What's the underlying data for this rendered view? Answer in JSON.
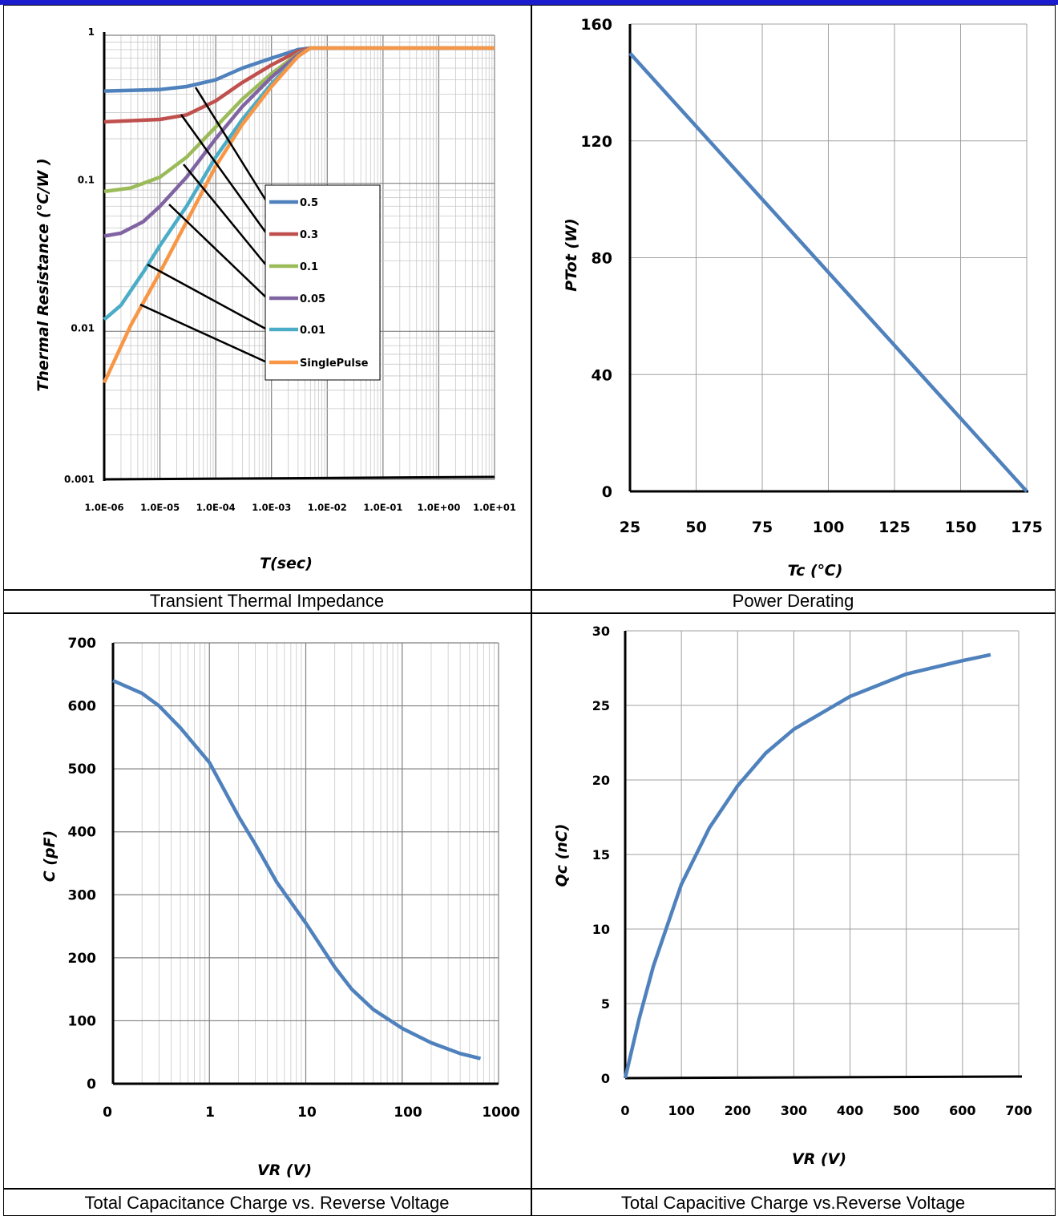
{
  "captions": {
    "tl": "Transient Thermal Impedance",
    "tr": "Power Derating",
    "bl": "Total Capacitance Charge vs. Reverse Voltage",
    "br": "Total Capacitive Charge vs.Reverse Voltage"
  },
  "chart_data": [
    {
      "type": "line",
      "x_scale": "log",
      "y_scale": "log",
      "xlabel": "T(sec)",
      "ylabel": "Thermal Resistance  (℃/W )",
      "xlim": [
        1e-06,
        10
      ],
      "ylim": [
        0.001,
        1
      ],
      "x_tick_labels": [
        "1.0E-06",
        "1.0E-05",
        "1.0E-04",
        "1.0E-03",
        "1.0E-02",
        "1.0E-01",
        "1.0E+00",
        "1.0E+01"
      ],
      "y_tick_labels": [
        "1",
        "0.1",
        "0.01",
        "0.001"
      ],
      "grid": true,
      "legend": "right",
      "series": [
        {
          "name": "0.5",
          "color": "#4f81bd",
          "x": [
            1e-06,
            1e-05,
            3e-05,
            0.0001,
            0.0003,
            0.001,
            0.003,
            0.005,
            10
          ],
          "y": [
            0.42,
            0.43,
            0.45,
            0.5,
            0.6,
            0.7,
            0.8,
            0.82,
            0.82
          ]
        },
        {
          "name": "0.3",
          "color": "#c0504d",
          "x": [
            1e-06,
            1e-05,
            3e-05,
            0.0001,
            0.0003,
            0.001,
            0.003,
            0.005,
            10
          ],
          "y": [
            0.26,
            0.27,
            0.29,
            0.36,
            0.48,
            0.63,
            0.78,
            0.82,
            0.82
          ]
        },
        {
          "name": "0.1",
          "color": "#9bbb59",
          "x": [
            1e-06,
            3e-06,
            1e-05,
            3e-05,
            0.0001,
            0.0003,
            0.001,
            0.003,
            0.005,
            10
          ],
          "y": [
            0.088,
            0.093,
            0.11,
            0.15,
            0.24,
            0.37,
            0.55,
            0.75,
            0.82,
            0.82
          ]
        },
        {
          "name": "0.05",
          "color": "#8064a2",
          "x": [
            1e-06,
            2e-06,
            5e-06,
            1e-05,
            3e-05,
            0.0001,
            0.0003,
            0.001,
            0.003,
            0.005,
            10
          ],
          "y": [
            0.044,
            0.046,
            0.055,
            0.07,
            0.11,
            0.2,
            0.33,
            0.52,
            0.74,
            0.82,
            0.82
          ]
        },
        {
          "name": "0.01",
          "color": "#4bacc6",
          "x": [
            1e-06,
            2e-06,
            5e-06,
            1e-05,
            3e-05,
            0.0001,
            0.0003,
            0.001,
            0.003,
            0.005,
            10
          ],
          "y": [
            0.012,
            0.015,
            0.025,
            0.038,
            0.07,
            0.15,
            0.27,
            0.47,
            0.72,
            0.82,
            0.82
          ]
        },
        {
          "name": "SinglePulse",
          "color": "#f79646",
          "x": [
            1e-06,
            3e-06,
            1e-05,
            3e-05,
            0.0001,
            0.0003,
            0.001,
            0.003,
            0.005,
            10
          ],
          "y": [
            0.0045,
            0.011,
            0.025,
            0.055,
            0.13,
            0.25,
            0.45,
            0.72,
            0.82,
            0.82
          ]
        }
      ]
    },
    {
      "type": "line",
      "xlabel": "Tc (℃)",
      "ylabel": "PTot (W)",
      "xlim": [
        25,
        175
      ],
      "ylim": [
        0,
        160
      ],
      "x_ticks": [
        25,
        50,
        75,
        100,
        125,
        150,
        175
      ],
      "y_ticks": [
        0,
        40,
        80,
        120,
        160
      ],
      "grid": true,
      "series": [
        {
          "color": "#4f81bd",
          "x": [
            25,
            175
          ],
          "y": [
            150,
            0
          ]
        }
      ]
    },
    {
      "type": "line",
      "x_scale": "log",
      "xlabel": "VR (V)",
      "ylabel": "C (pF)",
      "xlim": [
        0.1,
        1000
      ],
      "ylim": [
        0,
        700
      ],
      "x_tick_labels": [
        "0",
        "1",
        "10",
        "100",
        "1000"
      ],
      "y_ticks": [
        0,
        100,
        200,
        300,
        400,
        500,
        600,
        700
      ],
      "grid": true,
      "series": [
        {
          "color": "#4f81bd",
          "x": [
            0.1,
            0.2,
            0.3,
            0.5,
            1,
            2,
            3,
            5,
            10,
            20,
            30,
            50,
            100,
            200,
            400,
            650
          ],
          "y": [
            640,
            620,
            600,
            565,
            510,
            425,
            380,
            320,
            255,
            185,
            150,
            118,
            88,
            65,
            48,
            40
          ]
        }
      ]
    },
    {
      "type": "line",
      "xlabel": "VR (V)",
      "ylabel": "Qc (nC)",
      "xlim": [
        0,
        700
      ],
      "ylim": [
        0,
        30
      ],
      "x_ticks": [
        0,
        100,
        200,
        300,
        400,
        500,
        600,
        700
      ],
      "y_ticks": [
        0,
        5,
        10,
        15,
        20,
        25,
        30
      ],
      "grid": true,
      "series": [
        {
          "color": "#4f81bd",
          "x": [
            0,
            25,
            50,
            100,
            150,
            200,
            250,
            300,
            400,
            500,
            600,
            650
          ],
          "y": [
            0,
            4,
            7.5,
            13,
            16.8,
            19.6,
            21.8,
            23.4,
            25.6,
            27.1,
            28,
            28.4
          ]
        }
      ]
    }
  ]
}
